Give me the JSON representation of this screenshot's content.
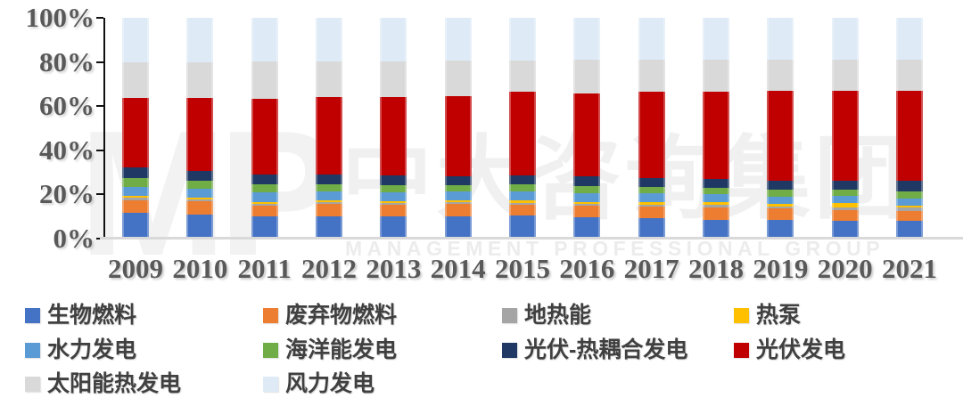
{
  "watermark": {
    "logo": "MP",
    "cn": "中大咨询集团",
    "en": "MANAGEMENT PROFESSIONAL GROUP"
  },
  "axis": {
    "y_tick_labels": [
      "100%",
      "80%",
      "60%",
      "40%",
      "20%",
      "0%"
    ]
  },
  "chart_data": {
    "type": "bar",
    "stacked": true,
    "units": "percent",
    "title": "",
    "xlabel": "",
    "ylabel": "",
    "ylim": [
      0,
      100
    ],
    "grid": false,
    "legend_position": "bottom",
    "categories": [
      "2009",
      "2010",
      "2011",
      "2012",
      "2013",
      "2014",
      "2015",
      "2016",
      "2017",
      "2018",
      "2019",
      "2020",
      "2021"
    ],
    "series": [
      {
        "name": "生物燃料",
        "color": "#4472C4",
        "values": [
          11.5,
          11.0,
          10.0,
          10.2,
          10.0,
          10.0,
          10.6,
          9.6,
          9.3,
          8.6,
          8.3,
          7.9,
          8.1
        ]
      },
      {
        "name": "废弃物燃料",
        "color": "#ED7D31",
        "values": [
          6.0,
          5.9,
          5.0,
          5.4,
          5.3,
          5.6,
          4.7,
          5.3,
          5.2,
          5.6,
          5.4,
          5.0,
          4.3
        ]
      },
      {
        "name": "地热能",
        "color": "#A5A5A5",
        "values": [
          0.9,
          0.8,
          0.7,
          0.8,
          0.7,
          0.8,
          0.7,
          0.7,
          0.8,
          1.0,
          0.8,
          1.3,
          1.7
        ]
      },
      {
        "name": "热泵",
        "color": "#FFC000",
        "values": [
          1.1,
          1.0,
          1.0,
          0.9,
          0.9,
          0.9,
          1.3,
          1.1,
          1.1,
          1.2,
          1.1,
          1.8,
          0.9
        ]
      },
      {
        "name": "水力发电",
        "color": "#5B9BD5",
        "values": [
          4.0,
          4.0,
          4.3,
          4.1,
          4.1,
          4.1,
          4.1,
          3.7,
          4.0,
          3.6,
          3.5,
          3.4,
          3.1
        ]
      },
      {
        "name": "海洋能发电",
        "color": "#70AD47",
        "values": [
          4.0,
          3.6,
          3.5,
          3.3,
          3.3,
          2.9,
          3.3,
          3.3,
          3.0,
          3.1,
          3.2,
          2.9,
          3.4
        ]
      },
      {
        "name": "光伏-热耦合发电",
        "color": "#1F3864",
        "values": [
          4.7,
          4.5,
          4.5,
          4.3,
          4.2,
          4.1,
          3.9,
          4.4,
          4.0,
          4.0,
          4.0,
          4.0,
          4.7
        ]
      },
      {
        "name": "光伏发电",
        "color": "#C00000",
        "values": [
          31.6,
          32.9,
          34.4,
          35.0,
          35.6,
          36.2,
          38.1,
          37.6,
          39.0,
          39.3,
          40.8,
          40.8,
          40.6
        ]
      },
      {
        "name": "太阳能热发电",
        "color": "#D9D9D9",
        "values": [
          16.1,
          16.1,
          16.7,
          16.1,
          16.3,
          15.9,
          13.8,
          15.2,
          14.6,
          14.6,
          14.1,
          14.1,
          14.2
        ]
      },
      {
        "name": "风力发电",
        "color": "#DEEBF7",
        "values": [
          20.1,
          20.2,
          19.9,
          19.9,
          19.6,
          19.5,
          19.5,
          19.1,
          19.0,
          19.0,
          18.8,
          18.8,
          19.0
        ]
      }
    ]
  }
}
